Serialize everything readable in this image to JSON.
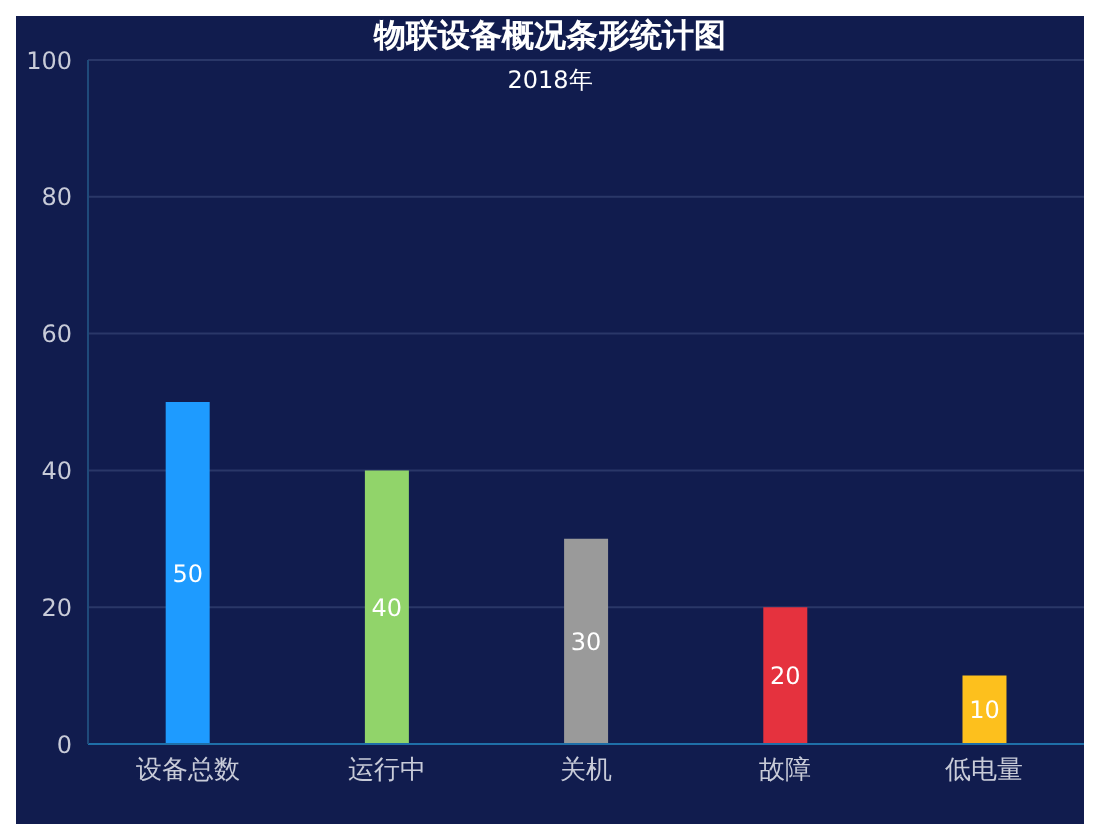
{
  "chart_data": {
    "type": "bar",
    "title": "物联设备概况条形统计图",
    "subtitle": "2018年",
    "categories": [
      "设备总数",
      "运行中",
      "关机",
      "故障",
      "低电量"
    ],
    "values": [
      50,
      40,
      30,
      20,
      10
    ],
    "colors": [
      "#1e9bff",
      "#91d46a",
      "#9a9a9a",
      "#e5323e",
      "#fdc01d"
    ],
    "ylim": [
      0,
      100
    ],
    "yticks": [
      0,
      20,
      40,
      60,
      80,
      100
    ],
    "grid": "y",
    "data_labels": true
  }
}
